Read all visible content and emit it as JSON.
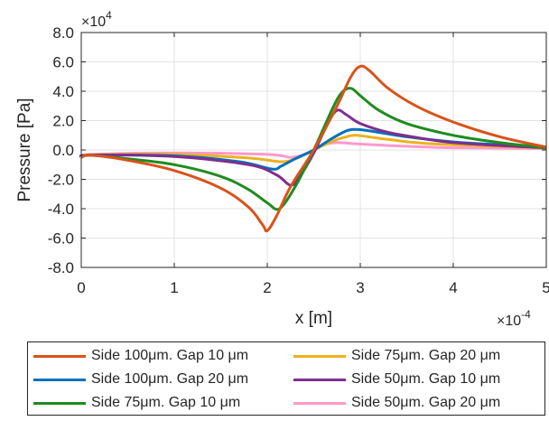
{
  "chart_data": {
    "type": "line",
    "xlabel": "x [m]",
    "ylabel": "Pressure [Pa]",
    "x_multiplier_label": "×10",
    "x_exponent": "-4",
    "y_multiplier_label": "×10",
    "y_exponent": "4",
    "xlim": [
      0,
      5
    ],
    "ylim": [
      -8,
      8
    ],
    "xticks": [
      "0",
      "1",
      "2",
      "3",
      "4",
      "5"
    ],
    "yticks": [
      "-8.0",
      "-6.0",
      "-4.0",
      "-2.0",
      "0.0",
      "2.0",
      "4.0",
      "6.0",
      "8.0"
    ],
    "grid": true,
    "legend_position": "bottom",
    "series": [
      {
        "name": "Side 100μm. Gap 10 μm",
        "color": "#d95319",
        "x": [
          0.0,
          0.1,
          0.5,
          1.0,
          1.5,
          1.8,
          1.95,
          2.0,
          2.1,
          2.25,
          2.5,
          2.75,
          2.9,
          3.0,
          3.1,
          3.3,
          3.6,
          4.0,
          4.5,
          5.0
        ],
        "y": [
          -0.5,
          -0.35,
          -0.7,
          -1.4,
          -2.6,
          -3.9,
          -5.1,
          -5.5,
          -4.5,
          -2.5,
          0.0,
          3.0,
          5.0,
          5.7,
          5.4,
          4.2,
          3.0,
          1.9,
          0.9,
          0.2
        ]
      },
      {
        "name": "Side 75μm. Gap 20 μm",
        "color": "#edb120",
        "x": [
          0.0,
          0.1,
          1.0,
          1.8,
          2.15,
          2.3,
          2.5,
          2.7,
          2.85,
          2.95,
          3.2,
          3.6,
          4.0,
          5.0
        ],
        "y": [
          -0.5,
          -0.35,
          -0.3,
          -0.55,
          -0.8,
          -0.6,
          0.0,
          0.6,
          0.9,
          1.0,
          0.8,
          0.5,
          0.35,
          0.15
        ]
      },
      {
        "name": "Side 100μm. Gap 20 μm",
        "color": "#0072bd",
        "x": [
          0.0,
          0.1,
          1.0,
          1.7,
          2.05,
          2.15,
          2.3,
          2.5,
          2.7,
          2.85,
          2.95,
          3.1,
          3.5,
          4.0,
          4.5,
          5.0
        ],
        "y": [
          -0.5,
          -0.35,
          -0.4,
          -0.8,
          -1.3,
          -1.1,
          -0.6,
          0.0,
          0.8,
          1.3,
          1.4,
          1.3,
          0.9,
          0.55,
          0.35,
          0.15
        ]
      },
      {
        "name": "Side 50μm. Gap 10 μm",
        "color": "#7e2f8e",
        "x": [
          0.0,
          0.1,
          1.0,
          1.8,
          2.1,
          2.25,
          2.35,
          2.5,
          2.65,
          2.75,
          2.85,
          3.0,
          3.3,
          3.7,
          4.0,
          4.5,
          5.0
        ],
        "y": [
          -0.5,
          -0.35,
          -0.45,
          -1.0,
          -1.7,
          -2.4,
          -1.8,
          -0.2,
          1.8,
          2.7,
          2.4,
          1.8,
          1.2,
          0.75,
          0.5,
          0.3,
          0.15
        ]
      },
      {
        "name": "Side 75μm. Gap 10 μm",
        "color": "#1e8c1e",
        "x": [
          0.0,
          0.1,
          0.5,
          1.0,
          1.5,
          1.8,
          2.0,
          2.13,
          2.3,
          2.5,
          2.7,
          2.8,
          2.9,
          3.0,
          3.2,
          3.5,
          4.0,
          4.5,
          5.0
        ],
        "y": [
          -0.5,
          -0.35,
          -0.6,
          -1.0,
          -1.8,
          -2.7,
          -3.6,
          -4.0,
          -2.5,
          0.0,
          2.8,
          3.9,
          4.2,
          3.7,
          2.7,
          1.8,
          1.0,
          0.5,
          0.15
        ]
      },
      {
        "name": "Side 50μm. Gap 20 μm",
        "color": "#ff99cc",
        "x": [
          0.0,
          0.1,
          1.0,
          2.0,
          2.25,
          2.4,
          2.5,
          2.6,
          2.75,
          3.0,
          3.5,
          4.0,
          5.0
        ],
        "y": [
          -0.5,
          -0.3,
          -0.2,
          -0.3,
          -0.5,
          -0.3,
          0.0,
          0.35,
          0.5,
          0.4,
          0.25,
          0.15,
          0.1
        ]
      }
    ],
    "legend_order": [
      0,
      1,
      2,
      3,
      4,
      5
    ]
  }
}
